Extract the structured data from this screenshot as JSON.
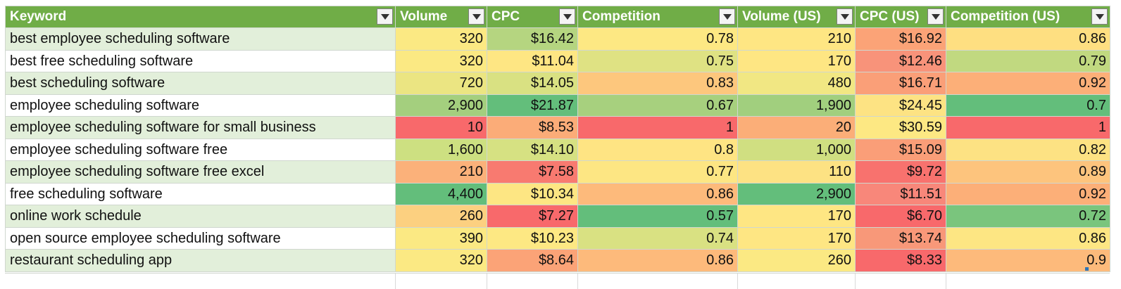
{
  "columns": [
    "Keyword",
    "Volume",
    "CPC",
    "Competition",
    "Volume (US)",
    "CPC (US)",
    "Competition (US)"
  ],
  "rows": [
    {
      "keyword": "best employee scheduling software",
      "cells": [
        {
          "text": "320",
          "bg": "#fbe983"
        },
        {
          "text": "$16.42",
          "bg": "#b5d580"
        },
        {
          "text": "0.78",
          "bg": "#fde883"
        },
        {
          "text": "210",
          "bg": "#fee683"
        },
        {
          "text": "$16.92",
          "bg": "#fba377"
        },
        {
          "text": "0.86",
          "bg": "#fedf81"
        }
      ]
    },
    {
      "keyword": "best free scheduling software",
      "cells": [
        {
          "text": "320",
          "bg": "#fbe983"
        },
        {
          "text": "$11.04",
          "bg": "#fee683"
        },
        {
          "text": "0.75",
          "bg": "#dfe283"
        },
        {
          "text": "170",
          "bg": "#fee683"
        },
        {
          "text": "$12.46",
          "bg": "#f8937a"
        },
        {
          "text": "0.79",
          "bg": "#c1d980"
        }
      ]
    },
    {
      "keyword": "best scheduling software",
      "cells": [
        {
          "text": "720",
          "bg": "#ebe582"
        },
        {
          "text": "$14.05",
          "bg": "#d9e182"
        },
        {
          "text": "0.83",
          "bg": "#fdc77d"
        },
        {
          "text": "480",
          "bg": "#f1e783"
        },
        {
          "text": "$16.71",
          "bg": "#fa9f78"
        },
        {
          "text": "0.92",
          "bg": "#fcaf78"
        }
      ]
    },
    {
      "keyword": "employee scheduling software",
      "cells": [
        {
          "text": "2,900",
          "bg": "#a4cf7e"
        },
        {
          "text": "$21.87",
          "bg": "#63be7b"
        },
        {
          "text": "0.67",
          "bg": "#a7d07e"
        },
        {
          "text": "1,900",
          "bg": "#a1cf7e"
        },
        {
          "text": "$24.45",
          "bg": "#fde383"
        },
        {
          "text": "0.7",
          "bg": "#63be7b"
        }
      ]
    },
    {
      "keyword": "employee scheduling software for small business",
      "cells": [
        {
          "text": "10",
          "bg": "#f8696b"
        },
        {
          "text": "$8.53",
          "bg": "#fbac78"
        },
        {
          "text": "1",
          "bg": "#f8696b"
        },
        {
          "text": "20",
          "bg": "#fbae78"
        },
        {
          "text": "$30.59",
          "bg": "#fde883"
        },
        {
          "text": "1",
          "bg": "#f8696b"
        }
      ]
    },
    {
      "keyword": "employee scheduling software free",
      "cells": [
        {
          "text": "1,600",
          "bg": "#cde081"
        },
        {
          "text": "$14.10",
          "bg": "#d6e182"
        },
        {
          "text": "0.8",
          "bg": "#fee483"
        },
        {
          "text": "1,000",
          "bg": "#d0df81"
        },
        {
          "text": "$15.09",
          "bg": "#fa9e78"
        },
        {
          "text": "0.82",
          "bg": "#fde283"
        }
      ]
    },
    {
      "keyword": "employee scheduling software free excel",
      "cells": [
        {
          "text": "210",
          "bg": "#fbb17a"
        },
        {
          "text": "$7.58",
          "bg": "#f87a70"
        },
        {
          "text": "0.77",
          "bg": "#fde683"
        },
        {
          "text": "110",
          "bg": "#fde283"
        },
        {
          "text": "$9.72",
          "bg": "#f8726e"
        },
        {
          "text": "0.89",
          "bg": "#fdc47d"
        }
      ]
    },
    {
      "keyword": "free scheduling software",
      "cells": [
        {
          "text": "4,400",
          "bg": "#63be7b"
        },
        {
          "text": "$10.34",
          "bg": "#fde683"
        },
        {
          "text": "0.86",
          "bg": "#fdba7b"
        },
        {
          "text": "2,900",
          "bg": "#63be7b"
        },
        {
          "text": "$11.51",
          "bg": "#f8877a"
        },
        {
          "text": "0.92",
          "bg": "#fcaf78"
        }
      ]
    },
    {
      "keyword": "online work schedule",
      "cells": [
        {
          "text": "260",
          "bg": "#fcd080"
        },
        {
          "text": "$7.27",
          "bg": "#f8696b"
        },
        {
          "text": "0.57",
          "bg": "#63be7b"
        },
        {
          "text": "170",
          "bg": "#fee683"
        },
        {
          "text": "$6.70",
          "bg": "#f8696b"
        },
        {
          "text": "0.72",
          "bg": "#7ac57d"
        }
      ]
    },
    {
      "keyword": "open source employee scheduling software",
      "cells": [
        {
          "text": "390",
          "bg": "#fbe983"
        },
        {
          "text": "$10.23",
          "bg": "#fde883"
        },
        {
          "text": "0.74",
          "bg": "#d9e182"
        },
        {
          "text": "170",
          "bg": "#fee683"
        },
        {
          "text": "$13.74",
          "bg": "#f89879"
        },
        {
          "text": "0.86",
          "bg": "#fde683"
        }
      ]
    },
    {
      "keyword": "restaurant scheduling app",
      "cells": [
        {
          "text": "320",
          "bg": "#fbe983"
        },
        {
          "text": "$8.64",
          "bg": "#fba377"
        },
        {
          "text": "0.86",
          "bg": "#fdba7b"
        },
        {
          "text": "260",
          "bg": "#fbe983"
        },
        {
          "text": "$8.33",
          "bg": "#f8696b"
        },
        {
          "text": "0.9",
          "bg": "#fdba7b"
        }
      ]
    }
  ],
  "header_color": "#70ad47",
  "band_color": "#e2efda",
  "filter_icon": "dropdown-filter-icon"
}
